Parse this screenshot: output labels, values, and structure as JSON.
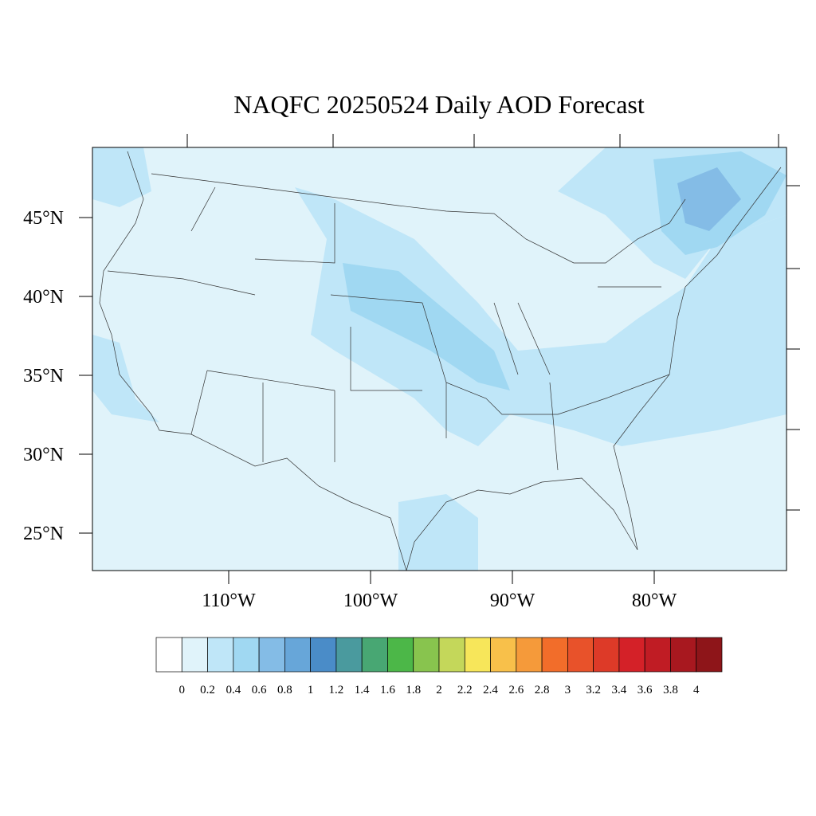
{
  "title": "NAQFC 20250524 Daily AOD Forecast",
  "latitude_ticks": [
    {
      "value": 45,
      "label": "45°N"
    },
    {
      "value": 40,
      "label": "40°N"
    },
    {
      "value": 35,
      "label": "35°N"
    },
    {
      "value": 30,
      "label": "30°N"
    },
    {
      "value": 25,
      "label": "25°N"
    }
  ],
  "longitude_ticks": [
    {
      "value": -110,
      "label": "110°W"
    },
    {
      "value": -100,
      "label": "100°W"
    },
    {
      "value": -90,
      "label": "90°W"
    },
    {
      "value": -80,
      "label": "80°W"
    }
  ],
  "colorbar": {
    "levels": [
      0,
      0.2,
      0.4,
      0.6,
      0.8,
      1,
      1.2,
      1.4,
      1.6,
      1.8,
      2,
      2.2,
      2.4,
      2.6,
      2.8,
      3,
      3.2,
      3.4,
      3.6,
      3.8,
      4
    ],
    "colors": [
      "#ffffff",
      "#e0f3fa",
      "#bfe6f8",
      "#a0d8f2",
      "#84bce6",
      "#67a6d9",
      "#4a8cc8",
      "#4a9a9e",
      "#48a773",
      "#4cb748",
      "#88c44e",
      "#c4d75a",
      "#f7e65a",
      "#f8c04a",
      "#f59a3a",
      "#f26d2a",
      "#e8522a",
      "#dd3a28",
      "#d42128",
      "#c01c24",
      "#a8181f",
      "#8e1519"
    ]
  }
}
